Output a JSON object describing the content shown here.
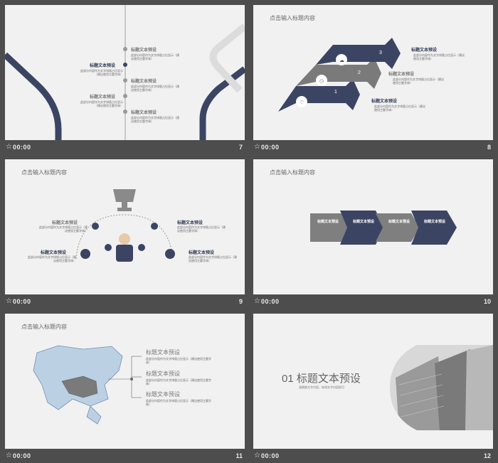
{
  "bars": [
    {
      "time": "00:00",
      "num": "7"
    },
    {
      "time": "00:00",
      "num": "8"
    },
    {
      "time": "00:00",
      "num": "9"
    },
    {
      "time": "00:00",
      "num": "10"
    },
    {
      "time": "00:00",
      "num": "11"
    },
    {
      "time": "00:00",
      "num": "12"
    }
  ],
  "common": {
    "slide_title": "点击输入标题内容",
    "item_title": "标题文本预设",
    "item_desc": "此部分内容作为文字排版占位显示（建议使用主题字体）"
  },
  "slide7": {
    "steps": [
      "标题文本预设",
      "标题文本预设",
      "标题文本预设",
      "标题文本预设",
      "标题文本预设"
    ]
  },
  "slide8": {
    "numbers": [
      "1",
      "2",
      "3"
    ],
    "labels": [
      "标题文本预设",
      "标题文本预设",
      "标题文本预设"
    ]
  },
  "slide9": {
    "labels": [
      "标题文本预设",
      "标题文本预设",
      "标题文本预设",
      "标题文本预设"
    ]
  },
  "slide10": {
    "labels": [
      "标题文本预设",
      "标题文本预设",
      "标题文本预设",
      "标题文本预设"
    ]
  },
  "slide11": {
    "labels": [
      "标题文本预设",
      "标题文本预设",
      "标题文本预设"
    ]
  },
  "slide12": {
    "heading": "01 标题文本预设",
    "sub": "请替换文字内容，修改文字内容即可"
  },
  "colors": {
    "navy": "#3b4563",
    "grey": "#8a8a8a",
    "slide_bg": "#f1f1f1",
    "page_bg": "#4d4d4d"
  }
}
